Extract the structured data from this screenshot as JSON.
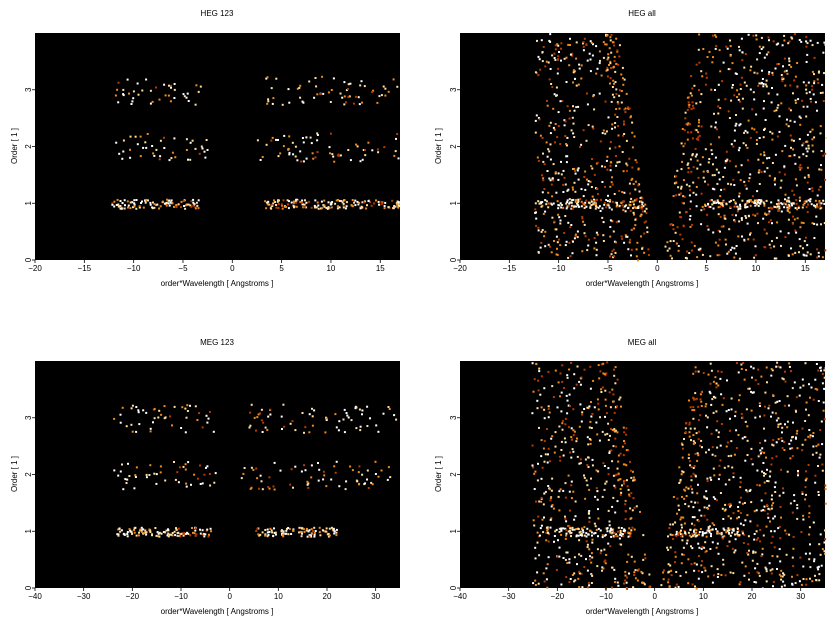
{
  "chart_data": [
    {
      "type": "heatmap",
      "title": "HEG 123",
      "xlabel": "order*Wavelength [ Angstroms ]",
      "ylabel": "Order [ 1 ]",
      "xlim": [
        -20,
        17
      ],
      "ylim": [
        0,
        4
      ],
      "xticks": [
        -20,
        -15,
        -10,
        -5,
        0,
        5,
        10,
        15
      ],
      "yticks": [
        0,
        1,
        2,
        3
      ],
      "colormap": [
        "#000000",
        "#5a0f00",
        "#b83a00",
        "#f08a1a",
        "#ffe0a0",
        "#ffffff"
      ],
      "bands": [
        {
          "order": 1,
          "x_ranges": [
            [
              -12.3,
              -3.5
            ],
            [
              3.2,
              16.8
            ]
          ],
          "peak_x": [
            [
              -12,
              -8
            ],
            [
              8,
              11
            ]
          ]
        },
        {
          "order": 2,
          "x_ranges": [
            [
              -12,
              -2.5
            ],
            [
              2.2,
              16.8
            ]
          ],
          "peak_x": [
            [
              -12,
              -8
            ]
          ]
        },
        {
          "order": 3,
          "x_ranges": [
            [
              -12,
              -3
            ],
            [
              3.2,
              16.8
            ]
          ],
          "peak_x": [
            [
              -11,
              -8
            ]
          ]
        }
      ]
    },
    {
      "type": "heatmap",
      "title": "HEG all",
      "xlabel": "order*Wavelength [ Angstroms ]",
      "ylabel": "Order [ 1 ]",
      "xlim": [
        -20,
        17
      ],
      "ylim": [
        0,
        4
      ],
      "xticks": [
        -20,
        -15,
        -10,
        -5,
        0,
        5,
        10,
        15
      ],
      "yticks": [
        0,
        1,
        2,
        3
      ],
      "colormap": [
        "#000000",
        "#5a0f00",
        "#b83a00",
        "#f08a1a",
        "#ffe0a0",
        "#ffffff"
      ],
      "bands": [
        {
          "order": 1,
          "x_ranges": [
            [
              -12.3,
              -1.5
            ],
            [
              5,
              16.8
            ]
          ],
          "peak_x": [
            [
              -12,
              -8
            ],
            [
              8,
              11
            ]
          ]
        }
      ]
    },
    {
      "type": "heatmap",
      "title": "MEG 123",
      "xlabel": "order*Wavelength [ Angstroms ]",
      "ylabel": "Order [ 1 ]",
      "xlim": [
        -40,
        35
      ],
      "ylim": [
        0,
        4
      ],
      "xticks": [
        -40,
        -30,
        -20,
        -10,
        0,
        10,
        20,
        30
      ],
      "yticks": [
        0,
        1,
        2,
        3
      ],
      "colormap": [
        "#000000",
        "#5a0f00",
        "#b83a00",
        "#f08a1a",
        "#ffe0a0",
        "#ffffff"
      ],
      "bands": [
        {
          "order": 1,
          "x_ranges": [
            [
              -24,
              -4
            ],
            [
              5,
              22
            ]
          ],
          "peak_x": [
            [
              -22,
              -12
            ],
            [
              6,
              16
            ]
          ]
        },
        {
          "order": 2,
          "x_ranges": [
            [
              -24,
              -3
            ],
            [
              2,
              33
            ]
          ],
          "peak_x": [
            [
              -22,
              -18
            ]
          ]
        },
        {
          "order": 3,
          "x_ranges": [
            [
              -24,
              -3
            ],
            [
              3,
              34
            ]
          ],
          "peak_x": [
            [
              -24,
              -18
            ],
            [
              18,
              32
            ]
          ]
        }
      ]
    },
    {
      "type": "heatmap",
      "title": "MEG all",
      "xlabel": "order*Wavelength [ Angstroms ]",
      "ylabel": "Order [ 1 ]",
      "xlim": [
        -40,
        35
      ],
      "ylim": [
        0,
        4
      ],
      "xticks": [
        -40,
        -30,
        -20,
        -10,
        0,
        10,
        20,
        30
      ],
      "yticks": [
        0,
        1,
        2,
        3
      ],
      "colormap": [
        "#000000",
        "#5a0f00",
        "#b83a00",
        "#f08a1a",
        "#ffe0a0",
        "#ffffff"
      ],
      "bands": [
        {
          "order": 1,
          "x_ranges": [
            [
              -24,
              -5
            ],
            [
              4,
              18
            ]
          ],
          "peak_x": [
            [
              -22,
              -14
            ],
            [
              6,
              16
            ]
          ]
        }
      ]
    }
  ]
}
